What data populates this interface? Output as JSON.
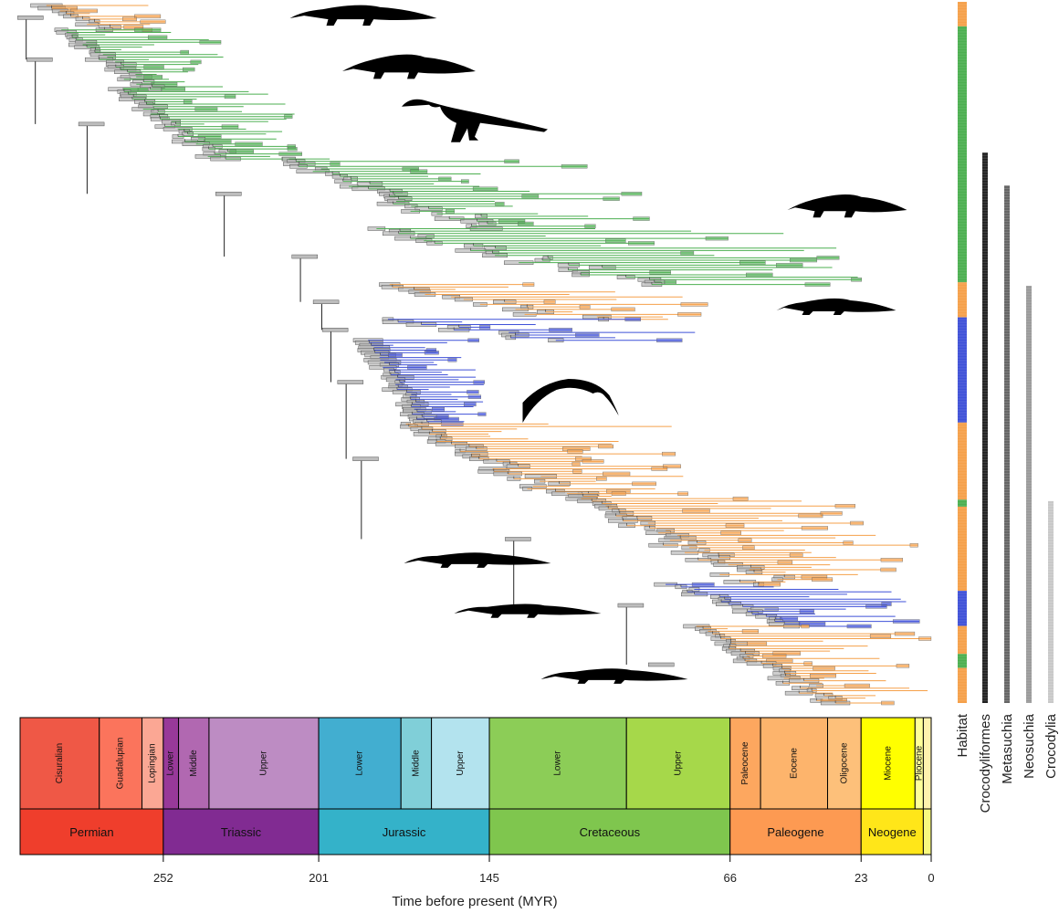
{
  "chart_data": {
    "type": "phylogenetic-tree",
    "xlabel": "Time before present (MYR)",
    "xlim": [
      299,
      0
    ],
    "x_ticks": [
      252,
      201,
      145,
      66,
      23,
      0
    ],
    "habitat_colors": {
      "terrestrial": "#4caf50",
      "freshwater": "#f5a04a",
      "marine": "#3f51d8",
      "uncertainty_bar": "#bdbdbd"
    },
    "periods": [
      {
        "name": "Permian",
        "start": 299,
        "end": 252,
        "color": "#ef3e2c"
      },
      {
        "name": "Triassic",
        "start": 252,
        "end": 201,
        "color": "#812b92"
      },
      {
        "name": "Jurassic",
        "start": 201,
        "end": 145,
        "color": "#34b2c9"
      },
      {
        "name": "Cretaceous",
        "start": 145,
        "end": 66,
        "color": "#7fc64e"
      },
      {
        "name": "Paleogene",
        "start": 66,
        "end": 23,
        "color": "#fd9a52"
      },
      {
        "name": "Neogene",
        "start": 23,
        "end": 2.58,
        "color": "#ffe619"
      },
      {
        "name": "",
        "start": 2.58,
        "end": 0,
        "color": "#f9f97f"
      }
    ],
    "epochs": [
      {
        "name": "Cisuralian",
        "start": 299,
        "end": 273,
        "color": "#ef5846"
      },
      {
        "name": "Guadalupian",
        "start": 273,
        "end": 259,
        "color": "#fb745c"
      },
      {
        "name": "Lopingian",
        "start": 259,
        "end": 252,
        "color": "#fba794"
      },
      {
        "name": "Lower",
        "start": 252,
        "end": 247,
        "color": "#983999"
      },
      {
        "name": "Middle",
        "start": 247,
        "end": 237,
        "color": "#b168b1"
      },
      {
        "name": "Upper",
        "start": 237,
        "end": 201,
        "color": "#bd8cc3"
      },
      {
        "name": "Lower",
        "start": 201,
        "end": 174,
        "color": "#42aed0"
      },
      {
        "name": "Middle",
        "start": 174,
        "end": 164,
        "color": "#80cfd8"
      },
      {
        "name": "Upper",
        "start": 164,
        "end": 145,
        "color": "#b3e3ee"
      },
      {
        "name": "Lower",
        "start": 145,
        "end": 100,
        "color": "#8ccd57"
      },
      {
        "name": "Upper",
        "start": 100,
        "end": 66,
        "color": "#a6d84a"
      },
      {
        "name": "Paleocene",
        "start": 66,
        "end": 56,
        "color": "#fda75f"
      },
      {
        "name": "Eocene",
        "start": 56,
        "end": 34,
        "color": "#fdb46c"
      },
      {
        "name": "Oligocene",
        "start": 34,
        "end": 23,
        "color": "#fdc07a"
      },
      {
        "name": "Miocene",
        "start": 23,
        "end": 5.3,
        "color": "#ffff00"
      },
      {
        "name": "Pliocene",
        "start": 5.3,
        "end": 2.58,
        "color": "#ffff99"
      },
      {
        "name": "",
        "start": 2.58,
        "end": 0,
        "color": "#fff2ae"
      }
    ],
    "side_bars": [
      {
        "label": "Habitat",
        "type": "habitat"
      },
      {
        "label": "Crocodyliformes",
        "color": "#222222",
        "span": [
          0.215,
          1.0
        ]
      },
      {
        "label": "Metasuchia",
        "color": "#666666",
        "span": [
          0.262,
          1.0
        ]
      },
      {
        "label": "Neosuchia",
        "color": "#999999",
        "span": [
          0.405,
          1.0
        ]
      },
      {
        "label": "Crocodylia",
        "color": "#c8c8c8",
        "span": [
          0.712,
          1.0
        ]
      }
    ],
    "habitat_sequence": [
      [
        "freshwater",
        0.0,
        0.035
      ],
      [
        "terrestrial",
        0.035,
        0.4
      ],
      [
        "freshwater",
        0.4,
        0.45
      ],
      [
        "marine",
        0.45,
        0.6
      ],
      [
        "freshwater",
        0.6,
        0.71
      ],
      [
        "terrestrial",
        0.71,
        0.72
      ],
      [
        "freshwater",
        0.72,
        0.84
      ],
      [
        "marine",
        0.84,
        0.89
      ],
      [
        "freshwater",
        0.89,
        0.93
      ],
      [
        "terrestrial",
        0.93,
        0.95
      ],
      [
        "freshwater",
        0.95,
        1.0
      ]
    ],
    "clades": [
      {
        "habitat": "freshwater",
        "root_age": 295,
        "tip_age": 255,
        "row_start": 0.0,
        "row_end": 0.035
      },
      {
        "habitat": "terrestrial",
        "root_age": 292,
        "tip_age": 235,
        "row_start": 0.035,
        "row_end": 0.12
      },
      {
        "habitat": "terrestrial",
        "root_age": 275,
        "tip_age": 205,
        "row_start": 0.12,
        "row_end": 0.22
      },
      {
        "habitat": "terrestrial",
        "root_age": 230,
        "tip_age": 90,
        "row_start": 0.22,
        "row_end": 0.32
      },
      {
        "habitat": "terrestrial",
        "root_age": 205,
        "tip_age": 20,
        "row_start": 0.32,
        "row_end": 0.4
      },
      {
        "habitat": "freshwater",
        "root_age": 198,
        "tip_age": 60,
        "row_start": 0.4,
        "row_end": 0.45
      },
      {
        "habitat": "marine",
        "root_age": 195,
        "tip_age": 75,
        "row_start": 0.45,
        "row_end": 0.48
      },
      {
        "habitat": "marine",
        "root_age": 190,
        "tip_age": 150,
        "row_start": 0.48,
        "row_end": 0.6
      },
      {
        "habitat": "freshwater",
        "root_age": 185,
        "tip_age": 80,
        "row_start": 0.6,
        "row_end": 0.7
      },
      {
        "habitat": "freshwater",
        "root_age": 135,
        "tip_age": 2,
        "row_start": 0.7,
        "row_end": 0.83
      },
      {
        "habitat": "marine",
        "root_age": 98,
        "tip_age": 3,
        "row_start": 0.83,
        "row_end": 0.89
      },
      {
        "habitat": "freshwater",
        "root_age": 88,
        "tip_age": 0,
        "row_start": 0.89,
        "row_end": 1.0
      }
    ]
  }
}
